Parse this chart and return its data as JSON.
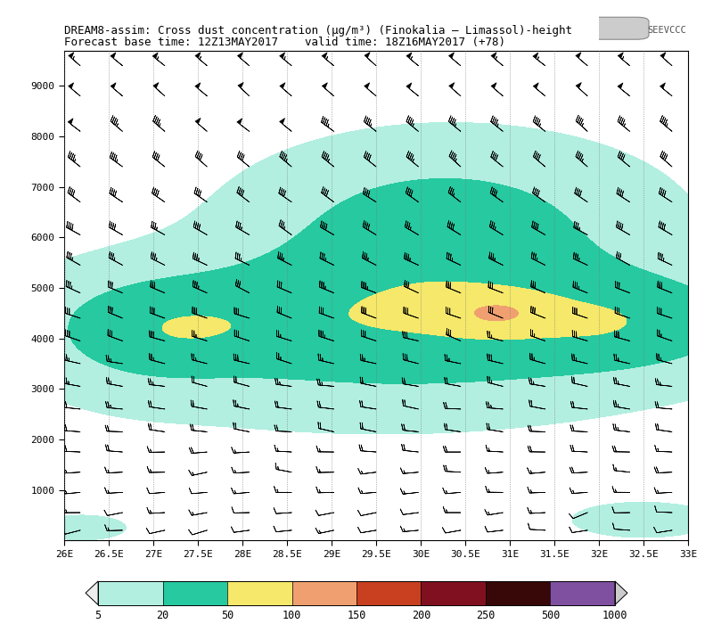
{
  "title_line1": "DREAM8-assim: Cross dust concentration (μg/m³) (Finokalia – Limassol)-height",
  "title_line2": "Forecast base time: 12Z13MAY2017    valid time: 18Z16MAY2017 (+78)",
  "x_min": 26.0,
  "x_max": 33.0,
  "y_min": 0,
  "y_max": 9700,
  "x_ticks": [
    26,
    26.5,
    27,
    27.5,
    28,
    28.5,
    29,
    29.5,
    30,
    30.5,
    31,
    31.5,
    32,
    32.5,
    33
  ],
  "x_tick_labels": [
    "26E",
    "26.5E",
    "27E",
    "27.5E",
    "28E",
    "28.5E",
    "29E",
    "29.5E",
    "30E",
    "30.5E",
    "31E",
    "31.5E",
    "32E",
    "32.5E",
    "33E"
  ],
  "y_ticks": [
    1000,
    2000,
    3000,
    4000,
    5000,
    6000,
    7000,
    8000,
    9000
  ],
  "colorbar_levels": [
    5,
    20,
    50,
    100,
    150,
    200,
    250,
    500,
    1000
  ],
  "colorbar_colors": [
    "#b2efe0",
    "#26c9a0",
    "#f5e86a",
    "#f0a070",
    "#c84020",
    "#801020",
    "#380808",
    "#8050a0"
  ],
  "background_color": "#ffffff"
}
